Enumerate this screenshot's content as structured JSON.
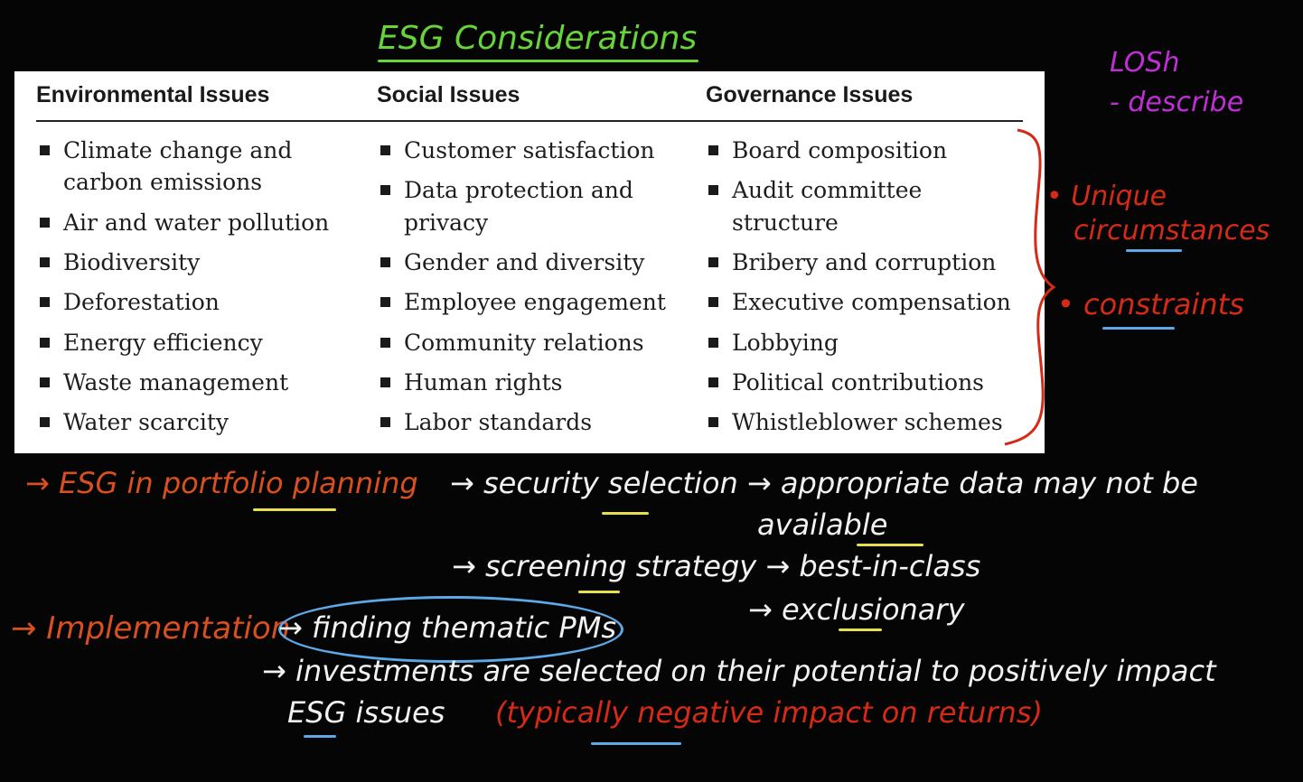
{
  "title": "ESG Considerations",
  "side_notes": {
    "losh": "LOSh",
    "describe": "- describe",
    "unique_1": "• Unique",
    "unique_2": "circumstances",
    "constraints": "• constraints"
  },
  "table": {
    "columns": [
      {
        "header": "Environmental Issues",
        "items": [
          "Climate change and",
          "carbon emissions",
          "Air and water pollution",
          "Biodiversity",
          "Deforestation",
          "Energy efficiency",
          "Waste management",
          "Water scarcity"
        ]
      },
      {
        "header": "Social Issues",
        "items": [
          "Customer satisfaction",
          "Data protection and",
          "privacy",
          "Gender and diversity",
          "Employee engagement",
          "Community relations",
          "Human rights",
          "Labor standards"
        ]
      },
      {
        "header": "Governance Issues",
        "items": [
          "Board composition",
          "Audit committee",
          "structure",
          "Bribery and corruption",
          "Executive compensation",
          "Lobbying",
          "Political contributions",
          "Whistleblower schemes"
        ]
      }
    ]
  },
  "notes": {
    "line1a": "→ ESG in portfolio planning",
    "line1b": "→ security selection → appropriate data may not be",
    "line2": "available",
    "line3": "→ screening strategy → best-in-class",
    "line4": "→ exclusionary",
    "line5a": "→ Implementation",
    "line5b": "→ finding thematic PMs",
    "line6": "→ investments are selected on their potential to positively impact",
    "line7a": "ESG issues",
    "line7b": "(typically negative impact on returns)"
  }
}
